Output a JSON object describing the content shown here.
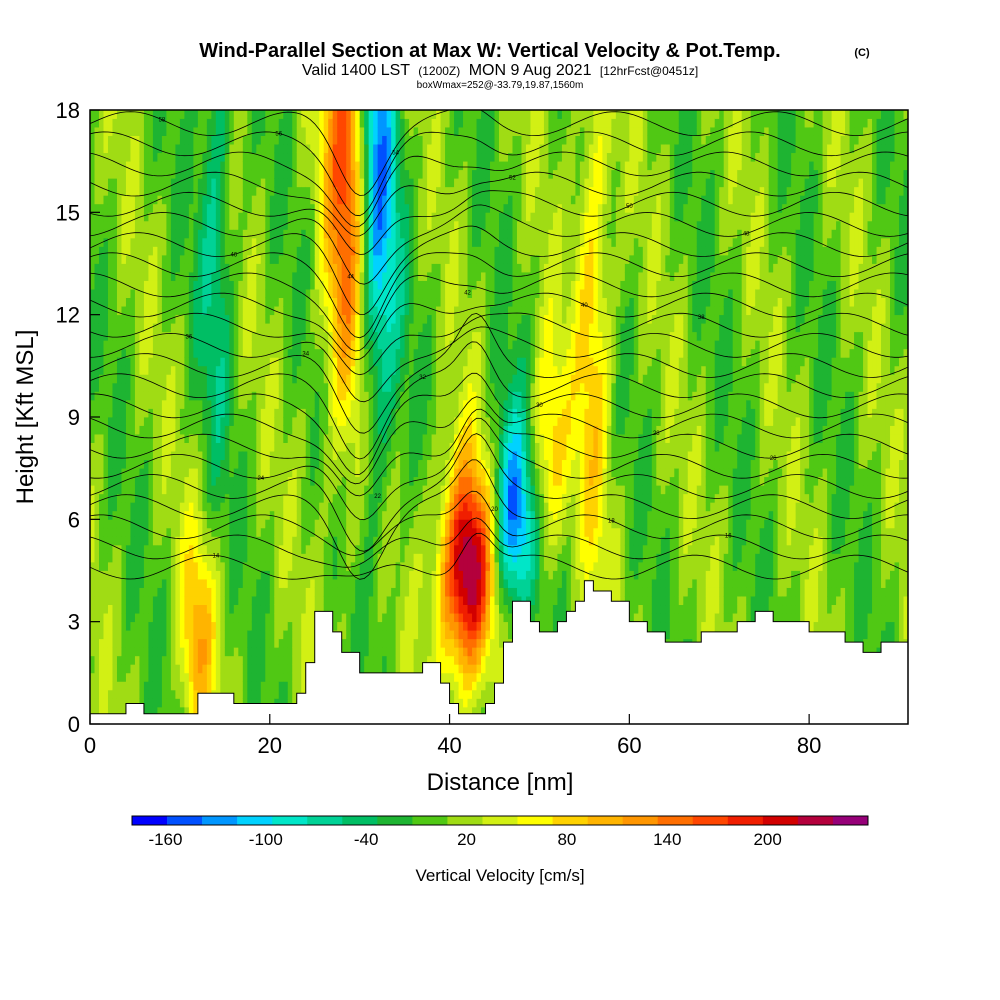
{
  "chart_data": {
    "type": "heatmap",
    "title": "Wind-Parallel Section at Max W: Vertical Velocity & Pot.Temp.",
    "title_mark": "(C)",
    "subtitle_main": "Valid 1400 LST",
    "subtitle_z": "(1200Z)",
    "subtitle_date": "MON 9 Aug 2021",
    "subtitle_fcst": "[12hrFcst@0451z]",
    "subtitle_box": "boxWmax=252@-33.79,19.87,1560m",
    "xlabel": "Distance [nm]",
    "ylabel": "Height [Kft MSL]",
    "xlim": [
      0,
      91
    ],
    "ylim": [
      0,
      18
    ],
    "x_ticks": [
      0,
      20,
      40,
      60,
      80
    ],
    "y_ticks": [
      0,
      3,
      6,
      9,
      12,
      15,
      18
    ],
    "colorbar": {
      "label": "Vertical Velocity [cm/s]",
      "tick_labels": [
        "-160",
        "-100",
        "-40",
        "20",
        "80",
        "140",
        "200"
      ],
      "min": -180,
      "max": 260,
      "colors": [
        "#0000ff",
        "#0050ff",
        "#0096ff",
        "#00d2ff",
        "#00e6c8",
        "#00d296",
        "#00be64",
        "#1eb432",
        "#50c814",
        "#a0dc14",
        "#d2f014",
        "#ffff00",
        "#ffd200",
        "#ffb400",
        "#ff9600",
        "#ff6e00",
        "#ff4600",
        "#f01e00",
        "#d20000",
        "#b4003c",
        "#960078"
      ]
    },
    "updrafts": [
      {
        "x": 29,
        "peak_height": 16.5,
        "max_w": 200
      },
      {
        "x": 42,
        "peak_height": 4.5,
        "max_w": 252
      },
      {
        "x": 51,
        "peak_height": 8.0,
        "max_w": 90
      },
      {
        "x": 56,
        "peak_height": 12.0,
        "max_w": 80
      },
      {
        "x": 12,
        "peak_height": 2.5,
        "max_w": 90
      }
    ],
    "downdrafts": [
      {
        "x": 31.5,
        "peak_height": 16.0,
        "min_w": -180
      },
      {
        "x": 47,
        "peak_height": 6.0,
        "min_w": -160
      },
      {
        "x": 14,
        "peak_height": 15.5,
        "min_w": -60
      }
    ],
    "terrain": {
      "x": [
        0,
        2,
        4,
        6,
        10,
        12,
        14,
        16,
        18,
        20,
        22,
        23,
        24,
        25,
        26,
        27,
        28,
        30,
        32,
        34,
        36,
        37,
        38,
        39,
        40,
        41,
        42,
        43,
        44,
        45,
        46,
        47,
        48,
        49,
        50,
        52,
        53,
        54,
        55,
        56,
        58,
        60,
        62,
        64,
        66,
        68,
        70,
        72,
        74,
        76,
        78,
        80,
        82,
        84,
        86,
        87,
        88,
        89,
        91
      ],
      "height": [
        0.3,
        0.3,
        0.6,
        0.3,
        0.3,
        0.9,
        0.9,
        0.6,
        0.6,
        0.6,
        0.6,
        0.9,
        1.8,
        3.3,
        3.3,
        2.7,
        2.1,
        1.5,
        1.5,
        1.5,
        1.5,
        1.8,
        1.8,
        1.2,
        0.6,
        0.3,
        0.3,
        0.3,
        0.6,
        1.2,
        2.4,
        3.6,
        3.6,
        3.0,
        2.7,
        3.0,
        3.3,
        3.6,
        4.2,
        3.9,
        3.6,
        3.0,
        2.7,
        2.4,
        2.4,
        2.7,
        2.7,
        3.0,
        3.3,
        3.0,
        3.0,
        2.7,
        2.7,
        2.4,
        2.1,
        2.1,
        2.4,
        2.4,
        2.4
      ]
    },
    "theta_contour_labels": [
      "58",
      "56",
      "54",
      "52",
      "50",
      "48",
      "46",
      "44",
      "42",
      "40",
      "38",
      "36",
      "34",
      "32",
      "30",
      "28",
      "26",
      "24",
      "22",
      "20",
      "18",
      "16",
      "14"
    ]
  }
}
